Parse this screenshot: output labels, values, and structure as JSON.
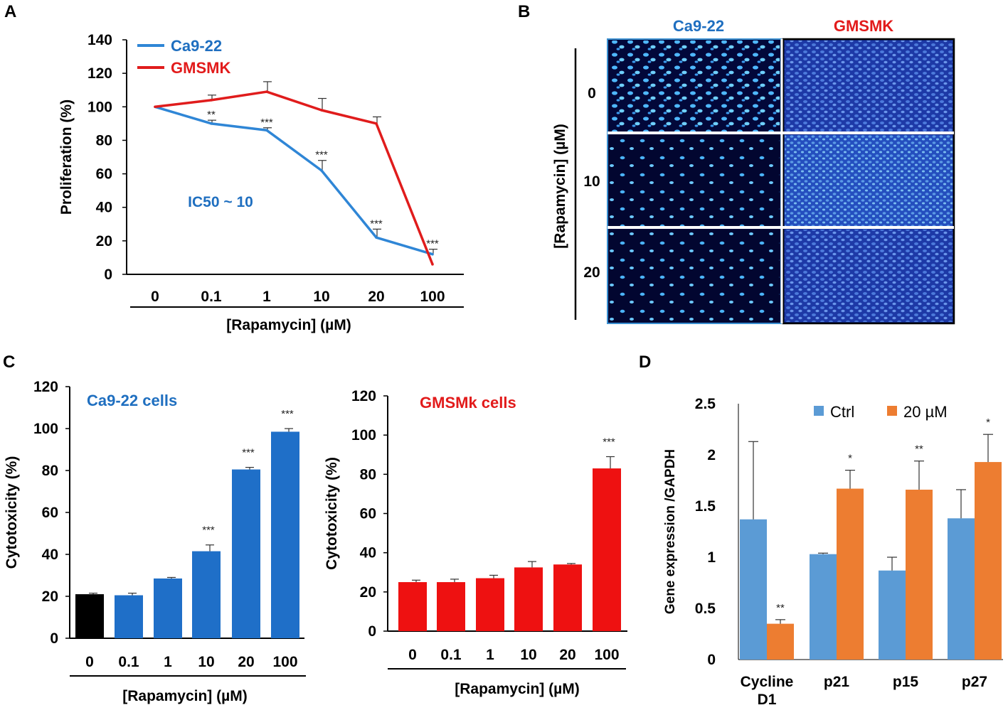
{
  "panels": {
    "A": {
      "label": "A"
    },
    "B": {
      "label": "B",
      "columns": [
        "Ca9-22",
        "GMSMK"
      ],
      "column_colors": [
        "#1f6fc0",
        "#e21b1b"
      ],
      "ylabel": "[Rapamycin] (µM)",
      "rows": [
        "0",
        "10",
        "20"
      ]
    },
    "C": {
      "label": "C"
    },
    "D": {
      "label": "D"
    }
  },
  "chart_data": [
    {
      "id": "A",
      "type": "line",
      "categories": [
        "0",
        "0.1",
        "1",
        "10",
        "20",
        "100"
      ],
      "series": [
        {
          "name": "Ca9-22",
          "color": "#2f86d6",
          "values": [
            100,
            90,
            86,
            62,
            22,
            12
          ],
          "errors": [
            0,
            2,
            1.5,
            6,
            5,
            3
          ]
        },
        {
          "name": "GMSMK",
          "color": "#e01c1c",
          "values": [
            100,
            104,
            109,
            98,
            90,
            6
          ],
          "errors": [
            0,
            3,
            6,
            7,
            4,
            0
          ]
        }
      ],
      "significance": [
        "",
        "**",
        "***",
        "***",
        "***",
        "***"
      ],
      "annotation": "IC50 ~ 10",
      "xlabel": "[Rapamycin] (µM)",
      "ylabel": "Proliferation (%)",
      "ylim": [
        0,
        140
      ],
      "yticks": [
        0,
        20,
        40,
        60,
        80,
        100,
        120,
        140
      ],
      "legend": "top-left"
    },
    {
      "id": "C1",
      "type": "bar",
      "title": "Ca9-22 cells",
      "title_color": "#1f6fc0",
      "categories": [
        "0",
        "0.1",
        "1",
        "10",
        "20",
        "100"
      ],
      "values": [
        21,
        20.5,
        28.5,
        41.5,
        80.5,
        98.5
      ],
      "errors": [
        0.5,
        1,
        0.5,
        3,
        1,
        1.5
      ],
      "colors": [
        "#000000",
        "#1f6fc8",
        "#1f6fc8",
        "#1f6fc8",
        "#1f6fc8",
        "#1f6fc8"
      ],
      "significance": [
        "",
        "",
        "",
        "***",
        "***",
        "***"
      ],
      "xlabel": "[Rapamycin] (µM)",
      "ylabel": "Cytotoxicity (%)",
      "ylim": [
        0,
        120
      ],
      "yticks": [
        0,
        20,
        40,
        60,
        80,
        100,
        120
      ]
    },
    {
      "id": "C2",
      "type": "bar",
      "title": "GMSMk cells",
      "title_color": "#e21b1b",
      "categories": [
        "0",
        "0.1",
        "1",
        "10",
        "20",
        "100"
      ],
      "values": [
        25,
        25,
        27,
        32.5,
        34,
        83
      ],
      "errors": [
        1,
        1.5,
        1.5,
        3,
        0.5,
        6
      ],
      "colors": [
        "#ee1111",
        "#ee1111",
        "#ee1111",
        "#ee1111",
        "#ee1111",
        "#ee1111"
      ],
      "significance": [
        "",
        "",
        "",
        "",
        "",
        "***"
      ],
      "xlabel": "[Rapamycin] (µM)",
      "ylabel": "Cytotoxicity (%)",
      "ylim": [
        0,
        120
      ],
      "yticks": [
        0,
        20,
        40,
        60,
        80,
        100,
        120
      ]
    },
    {
      "id": "D",
      "type": "bar",
      "categories": [
        [
          "Cycline",
          "D1"
        ],
        [
          "p21"
        ],
        [
          "p15"
        ],
        [
          "p27"
        ]
      ],
      "series": [
        {
          "name": "Ctrl",
          "color": "#5b9bd5",
          "values": [
            1.37,
            1.03,
            0.87,
            1.38
          ],
          "errors": [
            0.76,
            0.01,
            0.13,
            0.28
          ]
        },
        {
          "name": "20 µM",
          "color": "#ed7d31",
          "values": [
            0.35,
            1.67,
            1.66,
            1.93
          ],
          "errors": [
            0.04,
            0.18,
            0.28,
            0.27
          ]
        }
      ],
      "significance": [
        "**",
        "*",
        "**",
        "*"
      ],
      "ylabel": "Gene expression /GAPDH",
      "ylim": [
        0,
        2.5
      ],
      "yticks": [
        "0",
        "0.5",
        "1",
        "1.5",
        "2",
        "2.5"
      ],
      "legend": "top"
    }
  ]
}
